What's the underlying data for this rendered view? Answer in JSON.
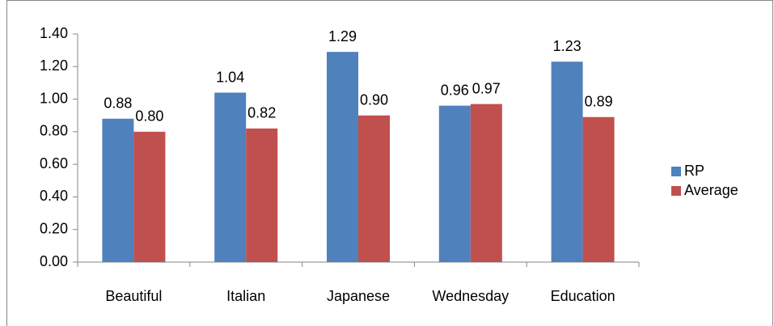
{
  "chart_data": {
    "type": "bar",
    "categories": [
      "Beautiful",
      "Italian",
      "Japanese",
      "Wednesday",
      "Education"
    ],
    "series": [
      {
        "name": "RP",
        "color": "#4f81bd",
        "values": [
          0.88,
          1.04,
          1.29,
          0.96,
          1.23
        ],
        "value_labels": [
          "0.88",
          "1.04",
          "1.29",
          "0.96",
          "1.23"
        ]
      },
      {
        "name": "Average",
        "color": "#c0504d",
        "values": [
          0.8,
          0.82,
          0.9,
          0.97,
          0.89
        ],
        "value_labels": [
          "0.80",
          "0.82",
          "0.90",
          "0.97",
          "0.89"
        ]
      }
    ],
    "ylim": [
      0,
      1.4
    ],
    "yticks": [
      {
        "value": 0,
        "label": "0.00"
      },
      {
        "value": 0.2,
        "label": "0.20"
      },
      {
        "value": 0.4,
        "label": "0.40"
      },
      {
        "value": 0.6,
        "label": "0.60"
      },
      {
        "value": 0.8,
        "label": "0.80"
      },
      {
        "value": 1.0,
        "label": "1.00"
      },
      {
        "value": 1.2,
        "label": "1.20"
      },
      {
        "value": 1.4,
        "label": "1.40"
      }
    ],
    "grid": false,
    "legend": "right"
  }
}
